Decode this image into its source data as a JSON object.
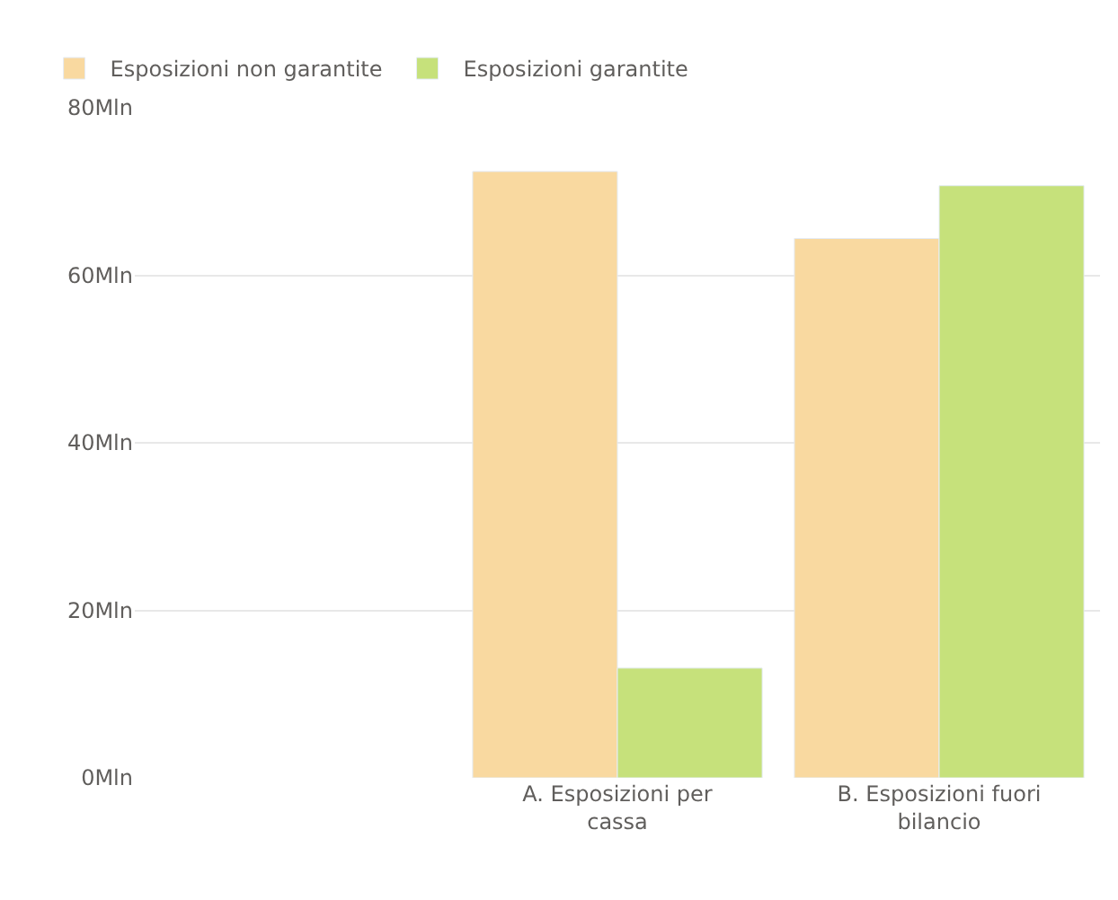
{
  "chart_data": {
    "type": "bar",
    "categories": [
      null,
      "A. Esposizioni per cassa",
      "B. Esposizioni fuori bilancio"
    ],
    "series": [
      {
        "name": "Esposizioni non garantite",
        "color": "#f9d9a0",
        "values": [
          null,
          72.4,
          64.4
        ]
      },
      {
        "name": "Esposizioni garantite",
        "color": "#c6e17b",
        "values": [
          null,
          13.1,
          70.7
        ]
      }
    ],
    "ylim": [
      0,
      80
    ],
    "yticks": [
      {
        "value": 0,
        "label": "0Mln"
      },
      {
        "value": 20,
        "label": "20Mln"
      },
      {
        "value": 40,
        "label": "40Mln"
      },
      {
        "value": 60,
        "label": "60Mln"
      },
      {
        "value": 80,
        "label": "80Mln"
      }
    ],
    "grid": "y",
    "legend": "top left"
  }
}
